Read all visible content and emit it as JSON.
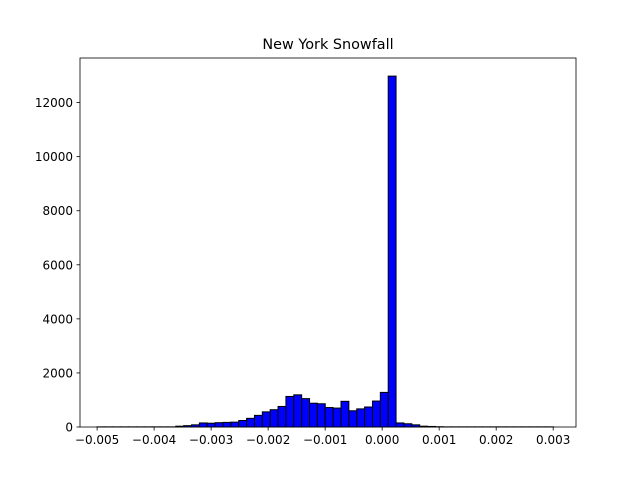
{
  "chart_data": {
    "type": "bar",
    "subtype": "histogram",
    "title": "New York Snowfall",
    "xlabel": "",
    "ylabel": "",
    "xlim": [
      -0.0053,
      0.0034
    ],
    "ylim": [
      0,
      13650
    ],
    "bar_color": "#0000ff",
    "edge_color": "#000000",
    "grid": false,
    "x_ticks": [
      -0.005,
      -0.004,
      -0.003,
      -0.002,
      -0.001,
      0.0,
      0.001,
      0.002,
      0.003
    ],
    "x_tick_labels": [
      "−0.005",
      "−0.004",
      "−0.003",
      "−0.002",
      "−0.001",
      "0.000",
      "0.001",
      "0.002",
      "0.003"
    ],
    "y_ticks": [
      0,
      2000,
      4000,
      6000,
      8000,
      10000,
      12000
    ],
    "y_tick_labels": [
      "0",
      "2000",
      "4000",
      "6000",
      "8000",
      "10000",
      "12000"
    ],
    "bin_start": -0.005,
    "bin_width": 0.000138,
    "values": [
      5,
      5,
      5,
      5,
      5,
      5,
      5,
      5,
      5,
      5,
      30,
      50,
      80,
      150,
      140,
      160,
      170,
      180,
      240,
      320,
      430,
      560,
      640,
      760,
      1130,
      1190,
      1050,
      880,
      860,
      720,
      700,
      950,
      600,
      670,
      740,
      960,
      1280,
      12980,
      150,
      120,
      80,
      30,
      20,
      10,
      5,
      5,
      5,
      5,
      5,
      5,
      5,
      5,
      5,
      5,
      5,
      5,
      5,
      5
    ]
  }
}
